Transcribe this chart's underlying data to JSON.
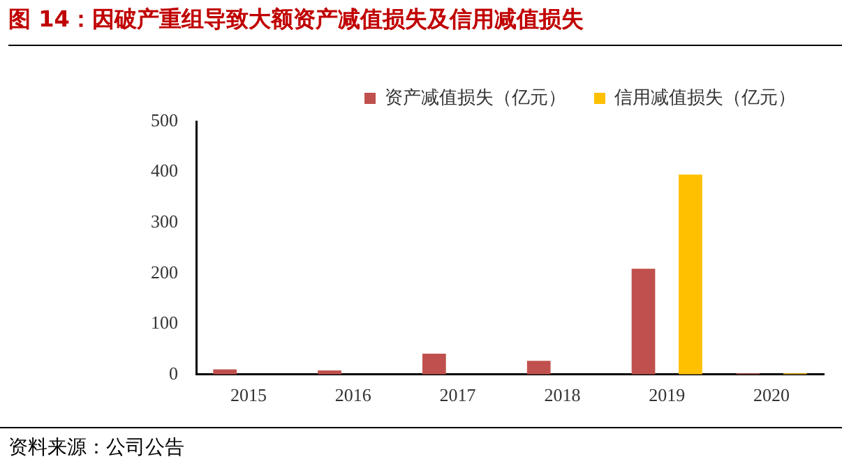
{
  "chart_data": {
    "type": "bar",
    "title": "图 14：因破产重组导致大额资产减值损失及信用减值损失",
    "categories": [
      "2015",
      "2016",
      "2017",
      "2018",
      "2019",
      "2020"
    ],
    "series": [
      {
        "name": "资产减值损失（亿元）",
        "color": "#c0504d",
        "values": [
          10,
          8,
          41,
          27,
          209,
          2
        ]
      },
      {
        "name": "信用减值损失（亿元）",
        "color": "#ffc000",
        "values": [
          0,
          0,
          0,
          0,
          395,
          2
        ]
      }
    ],
    "ylim": [
      0,
      500
    ],
    "yticks": [
      0,
      100,
      200,
      300,
      400,
      500
    ],
    "grid": false,
    "legend": "top right",
    "annotations": [
      "资料来源：公司公告"
    ]
  }
}
